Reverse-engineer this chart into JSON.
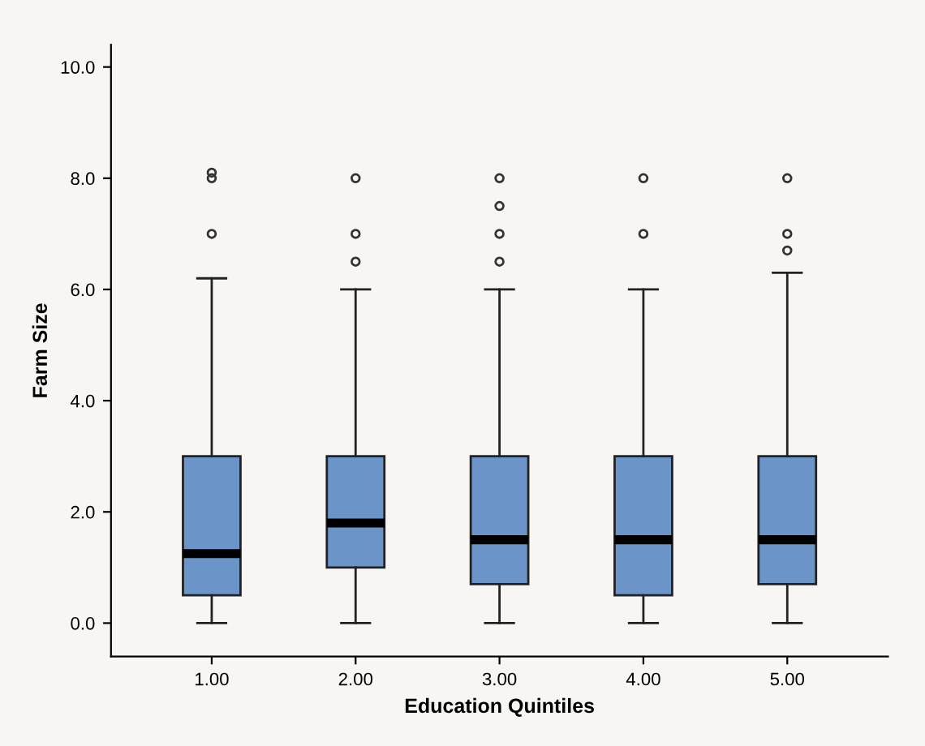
{
  "chart_data": {
    "type": "box",
    "xlabel": "Education Quintiles",
    "ylabel": "Farm Size",
    "categories": [
      "1.00",
      "2.00",
      "3.00",
      "4.00",
      "5.00"
    ],
    "boxes": [
      {
        "low": 0,
        "q1": 0.5,
        "median": 1.25,
        "q3": 3.0,
        "high": 6.2,
        "outliers": [
          8.1,
          8.0,
          7.0
        ]
      },
      {
        "low": 0,
        "q1": 1.0,
        "median": 1.8,
        "q3": 3.0,
        "high": 6.0,
        "outliers": [
          8.0,
          7.0,
          6.5
        ]
      },
      {
        "low": 0,
        "q1": 0.7,
        "median": 1.5,
        "q3": 3.0,
        "high": 6.0,
        "outliers": [
          8.0,
          7.5,
          7.0,
          6.5
        ]
      },
      {
        "low": 0,
        "q1": 0.5,
        "median": 1.5,
        "q3": 3.0,
        "high": 6.0,
        "outliers": [
          8.0,
          7.0
        ]
      },
      {
        "low": 0,
        "q1": 0.7,
        "median": 1.5,
        "q3": 3.0,
        "high": 6.3,
        "outliers": [
          8.0,
          7.0,
          6.7
        ]
      }
    ],
    "color": "#6b95c9",
    "ylim": [
      -0.6,
      10.4
    ],
    "yticks": [
      {
        "value": 0,
        "label": "0.0"
      },
      {
        "value": 2,
        "label": "2.0"
      },
      {
        "value": 4,
        "label": "4.0"
      },
      {
        "value": 6,
        "label": "6.0"
      },
      {
        "value": 8,
        "label": "8.0"
      },
      {
        "value": 10,
        "label": "10.0"
      }
    ],
    "grid": false,
    "legend": false
  }
}
